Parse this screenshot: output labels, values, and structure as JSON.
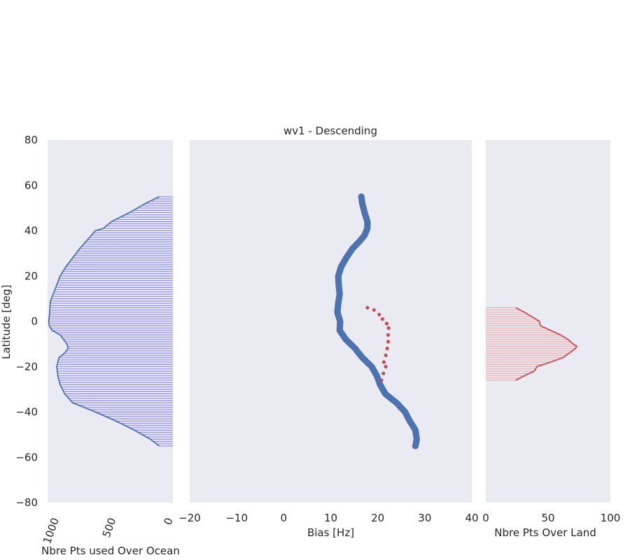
{
  "title": "wv1 - Descending",
  "style": {
    "panel_bg": "#eaeaf2",
    "ocean_color": "#4c72b0",
    "ocean_fill": "#7f7ff2",
    "land_color": "#c44e52",
    "land_fill": "#f2a0a0",
    "text_color": "#262626"
  },
  "chart_data": [
    {
      "type": "area",
      "panel": "ocean-counts",
      "orientation": "horizontal",
      "xlabel": "Nbre Pts used Over Ocean",
      "ylabel": "Latitude [deg]",
      "xlim": [
        1100,
        0
      ],
      "ylim": [
        -80,
        80
      ],
      "xticks": [
        "1000",
        "500",
        "0"
      ],
      "xtick_values": [
        1000,
        500,
        0
      ],
      "yticks": [
        "80",
        "60",
        "40",
        "20",
        "0",
        "−20",
        "−40",
        "−60",
        "−80"
      ],
      "ytick_values": [
        80,
        60,
        40,
        20,
        0,
        -20,
        -40,
        -60,
        -80
      ],
      "y": [
        55,
        52,
        48,
        44,
        41,
        40,
        36,
        32,
        28,
        24,
        20,
        16,
        12,
        9,
        6,
        2,
        0,
        -2,
        -4,
        -6,
        -8,
        -10,
        -12,
        -14,
        -16,
        -20,
        -24,
        -28,
        -32,
        -36,
        -40,
        -44,
        -48,
        -52,
        -55
      ],
      "values": [
        120,
        240,
        380,
        540,
        610,
        680,
        750,
        820,
        880,
        940,
        990,
        1020,
        1050,
        1075,
        1080,
        1085,
        1090,
        1085,
        1060,
        990,
        960,
        930,
        920,
        950,
        1000,
        1020,
        1010,
        990,
        950,
        880,
        680,
        500,
        340,
        200,
        120
      ]
    },
    {
      "type": "scatter",
      "panel": "bias",
      "xlabel": "Bias [Hz]",
      "xlim": [
        -20,
        40
      ],
      "ylim": [
        -80,
        80
      ],
      "xticks": [
        "−20",
        "−10",
        "0",
        "10",
        "20",
        "30",
        "40"
      ],
      "xtick_values": [
        -20,
        -10,
        0,
        10,
        20,
        30,
        40
      ],
      "series": [
        {
          "key": "ocean",
          "lat": [
            55,
            52,
            48,
            44,
            41,
            38,
            35,
            32,
            28,
            24,
            20,
            16,
            12,
            8,
            4,
            0,
            -4,
            -8,
            -12,
            -16,
            -20,
            -24,
            -28,
            -32,
            -36,
            -40,
            -44,
            -48,
            -52,
            -55
          ],
          "bias": [
            16.5,
            16.7,
            17.2,
            17.8,
            17.8,
            17.2,
            16.0,
            14.6,
            13.3,
            12.2,
            11.6,
            11.7,
            11.9,
            11.6,
            11.4,
            12.0,
            11.9,
            13.2,
            15.2,
            16.7,
            18.7,
            19.8,
            20.5,
            21.6,
            24.0,
            25.8,
            26.8,
            28.0,
            28.3,
            28.0
          ]
        },
        {
          "key": "land",
          "lat": [
            6,
            5,
            3,
            1,
            -1,
            -3,
            -6,
            -9,
            -12,
            -15,
            -18,
            -20,
            -23,
            -26
          ],
          "bias": [
            17.8,
            19.2,
            20.3,
            21.0,
            21.9,
            22.3,
            22.2,
            22.2,
            22.0,
            21.7,
            21.3,
            21.7,
            21.2,
            20.8
          ]
        }
      ]
    },
    {
      "type": "area",
      "panel": "land-counts",
      "orientation": "horizontal",
      "xlabel": "Nbre Pts Over Land",
      "xlim": [
        0,
        100
      ],
      "ylim": [
        -80,
        80
      ],
      "xticks": [
        "0",
        "50",
        "100"
      ],
      "xtick_values": [
        0,
        50,
        100
      ],
      "y": [
        6,
        4,
        2,
        0,
        -2,
        -4,
        -6,
        -8,
        -10,
        -11,
        -12,
        -14,
        -16,
        -18,
        -20,
        -22,
        -24,
        -26
      ],
      "values": [
        24,
        31,
        37,
        43,
        44,
        52,
        60,
        66,
        70,
        73,
        72,
        67,
        62,
        52,
        41,
        39,
        31,
        24
      ]
    }
  ]
}
